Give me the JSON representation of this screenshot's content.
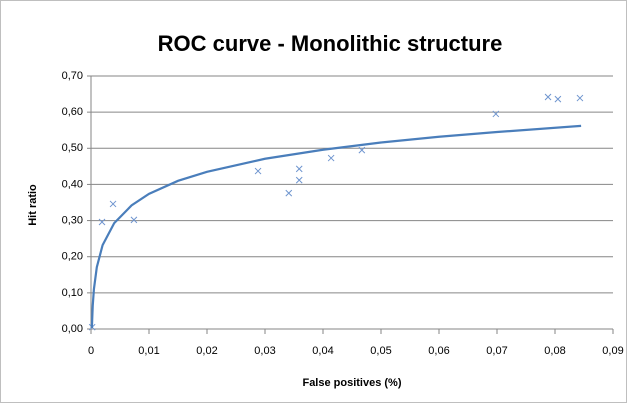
{
  "chart_data": {
    "type": "scatter",
    "title": "ROC curve - Monolithic structure",
    "xlabel": "False positives (%)",
    "ylabel": "Hit ratio",
    "xlim": [
      0,
      0.09
    ],
    "ylim": [
      0,
      0.7
    ],
    "xticks": [
      0,
      {
        "value": 0.01,
        "label": "0,01"
      },
      {
        "value": 0.02,
        "label": "0,02"
      },
      {
        "value": 0.03,
        "label": "0,03"
      },
      {
        "value": 0.04,
        "label": "0,04"
      },
      {
        "value": 0.05,
        "label": "0,05"
      },
      {
        "value": 0.06,
        "label": "0,06"
      },
      {
        "value": 0.07,
        "label": "0,07"
      },
      {
        "value": 0.08,
        "label": "0,08"
      },
      {
        "value": 0.09,
        "label": "0,09"
      }
    ],
    "yticks": [
      {
        "value": 0,
        "label": "0,00"
      },
      {
        "value": 0.1,
        "label": "0,10"
      },
      {
        "value": 0.2,
        "label": "0,20"
      },
      {
        "value": 0.3,
        "label": "0,30"
      },
      {
        "value": 0.4,
        "label": "0,40"
      },
      {
        "value": 0.5,
        "label": "0,50"
      },
      {
        "value": 0.6,
        "label": "0,60"
      },
      {
        "value": 0.7,
        "label": "0,70"
      }
    ],
    "grid": true,
    "series": [
      {
        "mode": "markers",
        "color": "#6f95cf",
        "x": [
          0.0002,
          0.0019,
          0.0038,
          0.0074,
          0.0288,
          0.0341,
          0.0359,
          0.0359,
          0.0414,
          0.0467,
          0.0698,
          0.0788,
          0.0805,
          0.0843
        ],
        "values": [
          0.005,
          0.296,
          0.346,
          0.302,
          0.437,
          0.376,
          0.443,
          0.412,
          0.473,
          0.495,
          0.595,
          0.642,
          0.636,
          0.639
        ]
      },
      {
        "mode": "line",
        "color": "#4a7ebb",
        "x": [
          0.00015,
          0.0003,
          0.0005,
          0.001,
          0.002,
          0.004,
          0.007,
          0.01,
          0.015,
          0.02,
          0.03,
          0.04,
          0.05,
          0.06,
          0.07,
          0.0845
        ],
        "values": [
          0.003,
          0.065,
          0.11,
          0.171,
          0.232,
          0.293,
          0.342,
          0.374,
          0.41,
          0.435,
          0.471,
          0.496,
          0.516,
          0.532,
          0.545,
          0.562
        ]
      }
    ]
  }
}
